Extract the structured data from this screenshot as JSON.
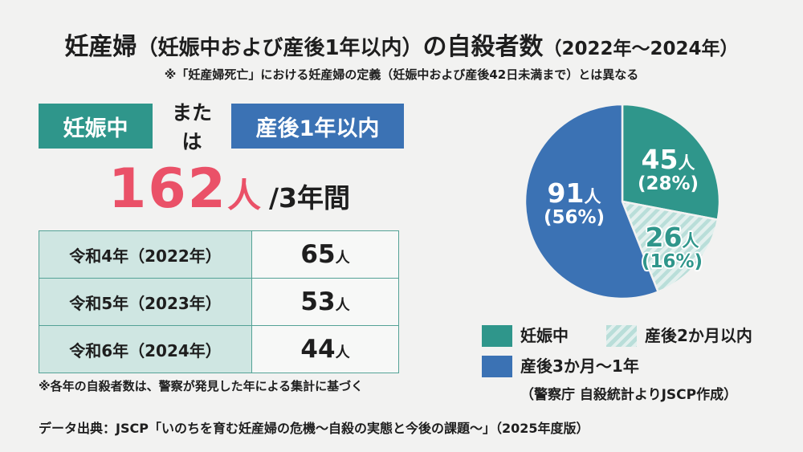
{
  "title": {
    "part1": "妊産婦",
    "part2": "（妊娠中および産後1年以内）",
    "part3": "の自殺者数",
    "part4": "（2022年〜2024年）"
  },
  "subtitle": "※「妊産婦死亡」における妊産婦の定義（妊娠中および産後42日未満まで）とは異なる",
  "summary": {
    "badge_pregnant": "妊娠中",
    "connector": "または",
    "badge_postpartum": "産後1年以内",
    "total_number": "162",
    "total_unit": "人",
    "total_period": "/3年間"
  },
  "table": {
    "rows": [
      {
        "year": "令和4年（2022年）",
        "count": "65",
        "unit": "人"
      },
      {
        "year": "令和5年（2023年）",
        "count": "53",
        "unit": "人"
      },
      {
        "year": "令和6年（2024年）",
        "count": "44",
        "unit": "人"
      }
    ]
  },
  "table_note": "※各年の自殺者数は、警察が発見した年による集計に基づく",
  "chart_data": {
    "type": "pie",
    "start_angle": "top",
    "direction": "clockwise",
    "total": 162,
    "unit": "人",
    "slices": [
      {
        "label": "妊娠中",
        "value": 45,
        "pct": 28,
        "num_display": "45",
        "unit": "人",
        "pct_display": "(28%)",
        "color": "#2f968b",
        "pattern": "solid"
      },
      {
        "label": "産後2か月以内",
        "value": 26,
        "pct": 16,
        "num_display": "26",
        "unit": "人",
        "pct_display": "(16%)",
        "color": "#b9ded9",
        "pattern": "diagonal-hatch"
      },
      {
        "label": "産後3か月〜1年",
        "value": 91,
        "pct": 56,
        "num_display": "91",
        "unit": "人",
        "pct_display": "(56%)",
        "color": "#3b72b4",
        "pattern": "solid"
      }
    ],
    "legend": [
      {
        "label": "妊娠中",
        "swatch": "teal"
      },
      {
        "label": "産後2か月以内",
        "swatch": "hatch"
      },
      {
        "label": "産後3か月〜1年",
        "swatch": "blue"
      }
    ]
  },
  "legend_note": "（警察庁 自殺統計よりJSCP作成）",
  "source": "データ出典：JSCP「いのちを育む妊産婦の危機〜自殺の実態と今後の課題〜」（2025年度版）",
  "colors": {
    "bg": "#f2f2f1",
    "text": "#1e1e1e",
    "teal": "#2f968b",
    "blue": "#3b72b4",
    "red": "#ea5168",
    "hatch_base": "#b9ded9",
    "hatch_stripe": "#e2f0ee",
    "table_head_bg": "#cfe6e2",
    "table_cell_bg": "#f7f8f7",
    "table_border": "#54a296"
  }
}
